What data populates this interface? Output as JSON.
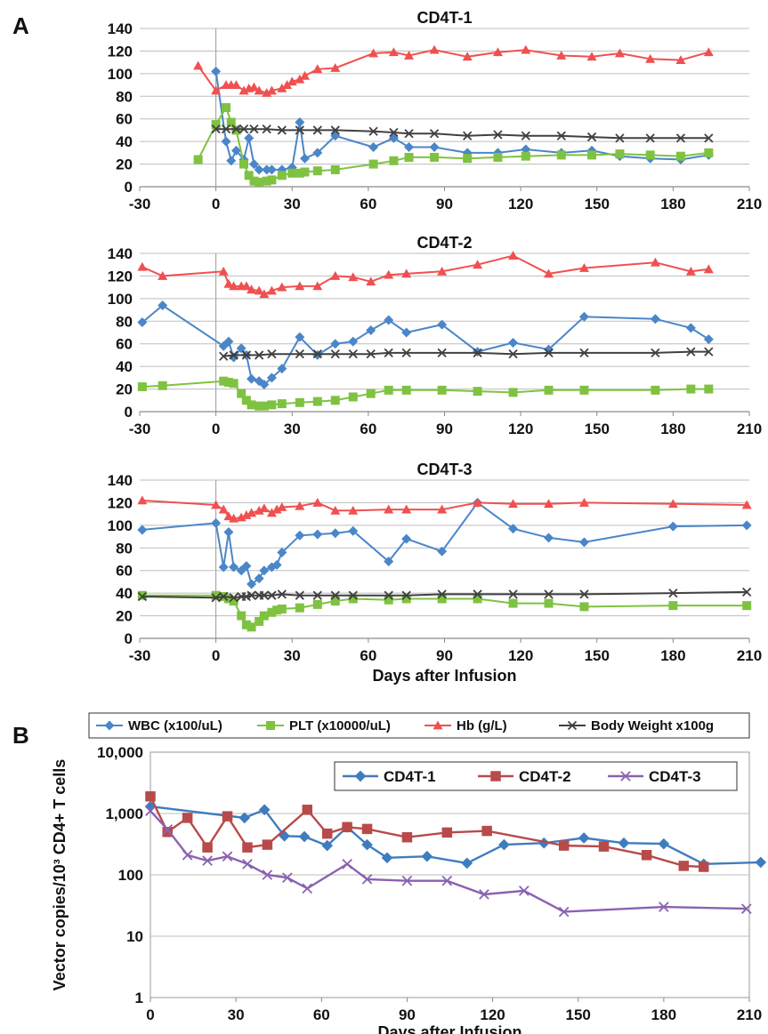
{
  "panels": {
    "a_label": "A",
    "b_label": "B"
  },
  "colors": {
    "wbc": "#4a86c8",
    "plt": "#7fc241",
    "hb": "#f05050",
    "bw": "#404040",
    "t1": "#3f7cbf",
    "t2": "#b84a4a",
    "t3": "#8a62b0"
  },
  "chart_data": [
    {
      "type": "line",
      "title": "CD4T-1",
      "xlim": [
        -30,
        210
      ],
      "ylim": [
        0,
        140
      ],
      "xticks": [
        -30,
        0,
        30,
        60,
        90,
        120,
        150,
        180,
        210
      ],
      "yticks": [
        0,
        20,
        40,
        60,
        80,
        100,
        120,
        140
      ],
      "series": [
        {
          "name": "WBC (x100/uL)",
          "x": [
            0,
            4,
            6,
            8,
            11,
            13,
            15,
            17,
            20,
            22,
            26,
            30,
            33,
            35,
            40,
            47,
            62,
            70,
            76,
            86,
            99,
            111,
            122,
            136,
            148,
            159,
            171,
            183,
            194
          ],
          "y": [
            102,
            40,
            23,
            32,
            24,
            43,
            20,
            15,
            15,
            15,
            15,
            17,
            57,
            25,
            30,
            45,
            35,
            43,
            35,
            35,
            30,
            30,
            33,
            30,
            32,
            27,
            25,
            24,
            28
          ]
        },
        {
          "name": "PLT (x10000/uL)",
          "x": [
            -7,
            0,
            4,
            6,
            8,
            11,
            13,
            15,
            17,
            20,
            22,
            26,
            30,
            33,
            35,
            40,
            47,
            62,
            70,
            76,
            86,
            99,
            111,
            122,
            136,
            148,
            159,
            171,
            183,
            194
          ],
          "y": [
            24,
            55,
            70,
            57,
            50,
            20,
            10,
            5,
            4,
            5,
            6,
            10,
            12,
            12,
            13,
            14,
            15,
            20,
            23,
            26,
            26,
            25,
            26,
            27,
            28,
            28,
            29,
            28,
            27,
            30
          ]
        },
        {
          "name": "Hb (g/L)",
          "x": [
            -7,
            0,
            4,
            6,
            8,
            11,
            13,
            15,
            17,
            20,
            22,
            26,
            28,
            30,
            33,
            35,
            40,
            47,
            62,
            70,
            76,
            86,
            99,
            111,
            122,
            136,
            148,
            159,
            171,
            183,
            194
          ],
          "y": [
            107,
            85,
            90,
            90,
            90,
            85,
            87,
            88,
            85,
            83,
            85,
            87,
            90,
            93,
            95,
            98,
            104,
            105,
            118,
            119,
            116,
            121,
            115,
            119,
            121,
            116,
            115,
            118,
            113,
            112,
            119
          ]
        },
        {
          "name": "Body Weight  x100g",
          "x": [
            0,
            4,
            8,
            11,
            15,
            20,
            26,
            33,
            40,
            47,
            62,
            70,
            76,
            86,
            99,
            111,
            122,
            136,
            148,
            159,
            171,
            183,
            194
          ],
          "y": [
            51,
            51,
            51,
            51,
            51,
            51,
            50,
            50,
            50,
            50,
            49,
            48,
            47,
            47,
            45,
            46,
            45,
            45,
            44,
            43,
            43,
            43,
            43
          ]
        }
      ]
    },
    {
      "type": "line",
      "title": "CD4T-2",
      "xlim": [
        -30,
        210
      ],
      "ylim": [
        0,
        140
      ],
      "xticks": [
        -30,
        0,
        30,
        60,
        90,
        120,
        150,
        180,
        210
      ],
      "yticks": [
        0,
        20,
        40,
        60,
        80,
        100,
        120,
        140
      ],
      "series": [
        {
          "name": "WBC (x100/uL)",
          "x": [
            -29,
            -21,
            3,
            5,
            7,
            10,
            12,
            14,
            17,
            19,
            22,
            26,
            33,
            40,
            47,
            54,
            61,
            68,
            75,
            89,
            103,
            117,
            131,
            145,
            173,
            187,
            194
          ],
          "y": [
            79,
            94,
            58,
            62,
            48,
            56,
            50,
            29,
            27,
            24,
            30,
            38,
            66,
            50,
            60,
            62,
            72,
            81,
            70,
            77,
            53,
            61,
            55,
            84,
            82,
            74,
            64
          ]
        },
        {
          "name": "PLT (x10000/uL)",
          "x": [
            -29,
            -21,
            3,
            5,
            7,
            10,
            12,
            14,
            17,
            19,
            22,
            26,
            33,
            40,
            47,
            54,
            61,
            68,
            75,
            89,
            103,
            117,
            131,
            145,
            173,
            187,
            194
          ],
          "y": [
            22,
            23,
            27,
            26,
            25,
            16,
            10,
            6,
            5,
            5,
            6,
            7,
            8,
            9,
            10,
            13,
            16,
            19,
            19,
            19,
            18,
            17,
            19,
            19,
            19,
            20,
            20
          ]
        },
        {
          "name": "Hb (g/L)",
          "x": [
            -29,
            -21,
            3,
            5,
            7,
            10,
            12,
            14,
            17,
            19,
            22,
            26,
            33,
            40,
            47,
            54,
            61,
            68,
            75,
            89,
            103,
            117,
            131,
            145,
            173,
            187,
            194
          ],
          "y": [
            128,
            120,
            124,
            113,
            111,
            111,
            111,
            108,
            107,
            104,
            107,
            110,
            111,
            111,
            120,
            119,
            115,
            121,
            122,
            124,
            130,
            138,
            122,
            127,
            132,
            124,
            126
          ]
        },
        {
          "name": "Body Weight  x100g",
          "x": [
            3,
            7,
            12,
            17,
            22,
            33,
            40,
            47,
            54,
            61,
            68,
            75,
            89,
            103,
            117,
            131,
            145,
            173,
            187,
            194
          ],
          "y": [
            49,
            50,
            50,
            50,
            51,
            51,
            51,
            51,
            51,
            51,
            52,
            52,
            52,
            52,
            51,
            52,
            52,
            52,
            53,
            53
          ]
        }
      ]
    },
    {
      "type": "line",
      "title": "CD4T-3",
      "xlabel": "Days after Infusion",
      "xlim": [
        -30,
        210
      ],
      "ylim": [
        0,
        140
      ],
      "xticks": [
        -30,
        0,
        30,
        60,
        90,
        120,
        150,
        180,
        210
      ],
      "yticks": [
        0,
        20,
        40,
        60,
        80,
        100,
        120,
        140
      ],
      "series": [
        {
          "name": "WBC (x100/uL)",
          "x": [
            -29,
            0,
            3,
            5,
            7,
            10,
            12,
            14,
            17,
            19,
            22,
            24,
            26,
            33,
            40,
            47,
            54,
            68,
            75,
            89,
            103,
            117,
            131,
            145,
            180,
            209
          ],
          "y": [
            96,
            102,
            63,
            94,
            63,
            60,
            64,
            48,
            53,
            60,
            63,
            65,
            76,
            91,
            92,
            93,
            95,
            68,
            88,
            77,
            120,
            97,
            89,
            85,
            99,
            100
          ]
        },
        {
          "name": "PLT (x10000/uL)",
          "x": [
            -29,
            0,
            3,
            5,
            7,
            10,
            12,
            14,
            17,
            19,
            22,
            24,
            26,
            33,
            40,
            47,
            54,
            68,
            75,
            89,
            103,
            117,
            131,
            145,
            180,
            209
          ],
          "y": [
            38,
            38,
            37,
            35,
            33,
            20,
            12,
            10,
            15,
            20,
            23,
            25,
            26,
            27,
            30,
            33,
            35,
            34,
            35,
            35,
            35,
            31,
            31,
            28,
            29,
            29
          ]
        },
        {
          "name": "Hb (g/L)",
          "x": [
            -29,
            0,
            3,
            5,
            7,
            10,
            12,
            14,
            17,
            19,
            22,
            24,
            26,
            33,
            40,
            47,
            54,
            68,
            75,
            89,
            103,
            117,
            131,
            145,
            180,
            209
          ],
          "y": [
            122,
            118,
            114,
            108,
            106,
            107,
            109,
            111,
            113,
            115,
            111,
            114,
            116,
            117,
            120,
            113,
            113,
            114,
            114,
            114,
            120,
            119,
            119,
            120,
            119,
            118
          ]
        },
        {
          "name": "Body Weight  x100g",
          "x": [
            -29,
            0,
            3,
            7,
            10,
            12,
            14,
            17,
            19,
            22,
            26,
            33,
            40,
            47,
            54,
            68,
            75,
            89,
            103,
            117,
            131,
            145,
            180,
            209
          ],
          "y": [
            37,
            36,
            37,
            36,
            37,
            37,
            38,
            38,
            38,
            38,
            39,
            38,
            38,
            38,
            38,
            38,
            38,
            39,
            39,
            39,
            39,
            39,
            40,
            41
          ]
        }
      ]
    },
    {
      "type": "line",
      "xlabel": "Days after Infusion",
      "ylabel": "Vector copies/10³ CD4+ T cells",
      "yscale": "log",
      "xlim": [
        0,
        210
      ],
      "ylim": [
        1,
        10000
      ],
      "xticks": [
        0,
        30,
        60,
        90,
        120,
        150,
        180,
        210
      ],
      "yticks": [
        1,
        10,
        100,
        1000,
        10000
      ],
      "ytick_labels": [
        "1",
        "10",
        "100",
        "1,000",
        "10,000"
      ],
      "legend": "top-right",
      "series": [
        {
          "name": "CD4T-1",
          "x": [
            0,
            33,
            40,
            47,
            54,
            62,
            69,
            76,
            83,
            97,
            111,
            124,
            138,
            152,
            166,
            180,
            194,
            214
          ],
          "y": [
            1300,
            850,
            1150,
            430,
            420,
            300,
            600,
            310,
            190,
            200,
            155,
            310,
            330,
            400,
            330,
            320,
            150,
            160
          ]
        },
        {
          "name": "CD4T-2",
          "x": [
            0,
            6,
            13,
            20,
            27,
            34,
            41,
            55,
            62,
            69,
            76,
            90,
            104,
            118,
            145,
            159,
            174,
            187,
            194
          ],
          "y": [
            1900,
            500,
            850,
            280,
            900,
            280,
            310,
            1150,
            470,
            600,
            560,
            410,
            490,
            520,
            300,
            290,
            210,
            140,
            135
          ]
        },
        {
          "name": "CD4T-3",
          "x": [
            0,
            6,
            13,
            20,
            27,
            34,
            41,
            48,
            55,
            69,
            76,
            90,
            104,
            117,
            131,
            145,
            180,
            209
          ],
          "y": [
            1100,
            550,
            210,
            170,
            200,
            150,
            100,
            90,
            60,
            150,
            85,
            80,
            80,
            48,
            55,
            25,
            30,
            28
          ]
        }
      ]
    }
  ]
}
